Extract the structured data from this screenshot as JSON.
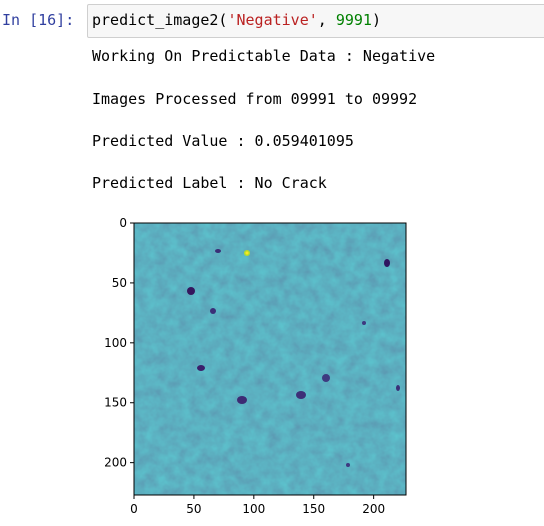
{
  "cell": {
    "prompt": "In [16]:",
    "code": {
      "func": "predict_image2(",
      "arg_string": "'Negative'",
      "separator": ", ",
      "arg_number": "9991",
      "close": ")"
    }
  },
  "output": {
    "lines": [
      "Working On Predictable Data : Negative",
      "Images Processed from 09991 to 09992",
      "Predicted Value : 0.059401095",
      "Predicted Label : No Crack"
    ]
  },
  "plot": {
    "colormap": "viridis",
    "x_ticks": [
      "0",
      "50",
      "100",
      "150",
      "200"
    ],
    "y_ticks": [
      "0",
      "50",
      "100",
      "150",
      "200"
    ],
    "x_range": [
      0,
      227
    ],
    "y_range": [
      0,
      227
    ]
  },
  "colors": {
    "prompt": "#303f9f",
    "string": "#ba2121",
    "number": "#008000",
    "image_base": "#2b6e8c"
  }
}
